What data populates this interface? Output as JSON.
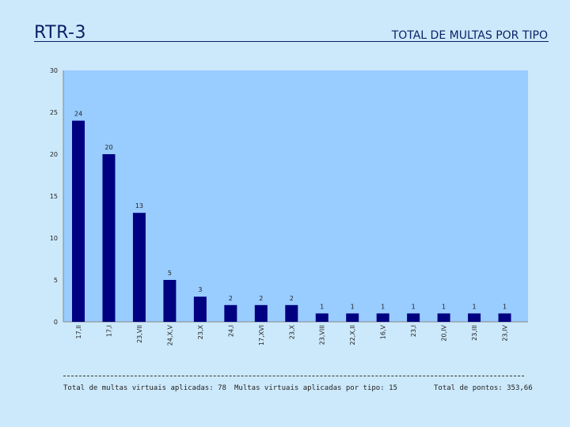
{
  "header": {
    "title": "RTR-3",
    "subtitle": "TOTAL DE MULTAS POR TIPO"
  },
  "footer": {
    "total_label": "Total de multas virtuais aplicadas: 78",
    "per_type_label": "Multas virtuais aplicadas por tipo: 15",
    "points_label": "Total de pontos: 353,66"
  },
  "colors": {
    "background": "#cce9fb",
    "plot_area": "#99ccff",
    "bar": "#000080"
  },
  "chart_data": {
    "type": "bar",
    "title": "TOTAL DE MULTAS POR TIPO",
    "xlabel": "",
    "ylabel": "",
    "ylim": [
      0,
      30
    ],
    "yticks": [
      0,
      5,
      10,
      15,
      20,
      25,
      30
    ],
    "grid": false,
    "categories": [
      "17,II",
      "17,I",
      "23,VII",
      "24,X,V",
      "23,X",
      "24,I",
      "17,XVI",
      "23,X",
      "23,VIII",
      "22,X,II",
      "16,V",
      "23,I",
      "20,IV",
      "23,III",
      "23,IV"
    ],
    "values": [
      24,
      20,
      13,
      5,
      3,
      2,
      2,
      2,
      1,
      1,
      1,
      1,
      1,
      1,
      1
    ]
  }
}
